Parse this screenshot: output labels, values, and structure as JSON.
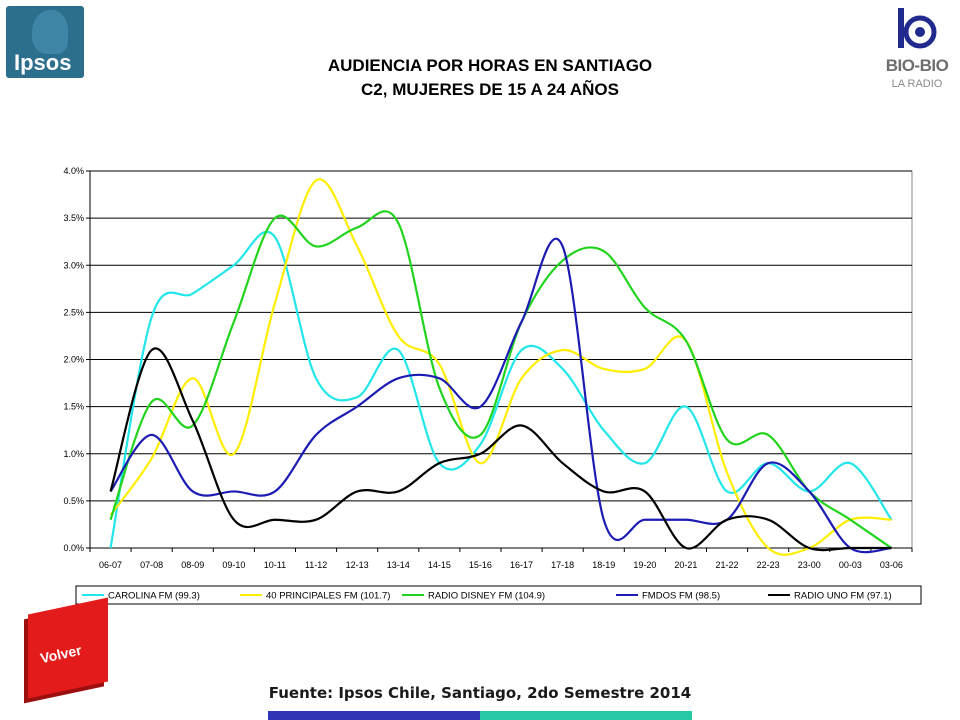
{
  "logos": {
    "ipsos": "Ipsos",
    "biobio_name": "BIO-BIO",
    "biobio_sub": "LA RADIO"
  },
  "header": {
    "title_line1": "AUDIENCIA POR HORAS EN SANTIAGO",
    "title_line2": "C2, MUJERES DE 15 A 24 AÑOS"
  },
  "footer": {
    "back_button": "Volver",
    "source": "Fuente: Ipsos Chile, Santiago, 2do Semestre 2014",
    "bar_colors": [
      "#3035b5",
      "#25c9a4"
    ]
  },
  "chart_data": {
    "type": "line",
    "title": "AUDIENCIA POR HORAS EN SANTIAGO C2, MUJERES DE 15 A 24 AÑOS",
    "xlabel": "",
    "ylabel": "",
    "ylim": [
      0,
      4.0
    ],
    "ytick_step": 0.5,
    "ytick_labels": [
      "0.0%",
      "0.5%",
      "1.0%",
      "1.5%",
      "2.0%",
      "2.5%",
      "3.0%",
      "3.5%",
      "4.0%"
    ],
    "grid": true,
    "legend_position": "bottom",
    "categories": [
      "06-07",
      "07-08",
      "08-09",
      "09-10",
      "10-11",
      "11-12",
      "12-13",
      "13-14",
      "14-15",
      "15-16",
      "16-17",
      "17-18",
      "18-19",
      "19-20",
      "20-21",
      "21-22",
      "22-23",
      "23-00",
      "00-03",
      "03-06"
    ],
    "series": [
      {
        "name": "CAROLINA FM (99.3)",
        "color": "#22e6ea",
        "values": [
          0.0,
          2.45,
          2.7,
          3.0,
          3.3,
          1.8,
          1.6,
          2.1,
          0.9,
          1.1,
          2.1,
          1.9,
          1.25,
          0.9,
          1.5,
          0.6,
          0.9,
          0.6,
          0.9,
          0.3
        ]
      },
      {
        "name": "40 PRINCIPALES FM (101.7)",
        "color": "#ffee00",
        "values": [
          0.35,
          0.95,
          1.8,
          1.0,
          2.6,
          3.9,
          3.2,
          2.25,
          1.95,
          0.9,
          1.8,
          2.1,
          1.9,
          1.9,
          2.2,
          0.8,
          0.0,
          0.0,
          0.3,
          0.3
        ]
      },
      {
        "name": "RADIO DISNEY FM (104.9)",
        "color": "#22d41e",
        "values": [
          0.3,
          1.55,
          1.3,
          2.4,
          3.5,
          3.2,
          3.4,
          3.45,
          1.7,
          1.2,
          2.4,
          3.05,
          3.15,
          2.55,
          2.2,
          1.15,
          1.2,
          0.6,
          0.3,
          0.0
        ]
      },
      {
        "name": "FMDOS FM (98.5)",
        "color": "#1c1cb4",
        "values": [
          0.6,
          1.2,
          0.6,
          0.6,
          0.6,
          1.2,
          1.5,
          1.8,
          1.8,
          1.5,
          2.4,
          3.2,
          0.3,
          0.3,
          0.3,
          0.3,
          0.9,
          0.6,
          0.0,
          0.0
        ]
      },
      {
        "name": "RADIO UNO FM (97.1)",
        "color": "#000000",
        "values": [
          0.6,
          2.1,
          1.35,
          0.3,
          0.3,
          0.3,
          0.6,
          0.6,
          0.9,
          1.0,
          1.3,
          0.9,
          0.6,
          0.6,
          0.0,
          0.3,
          0.3,
          0.0,
          0.0,
          0.0
        ]
      }
    ]
  }
}
